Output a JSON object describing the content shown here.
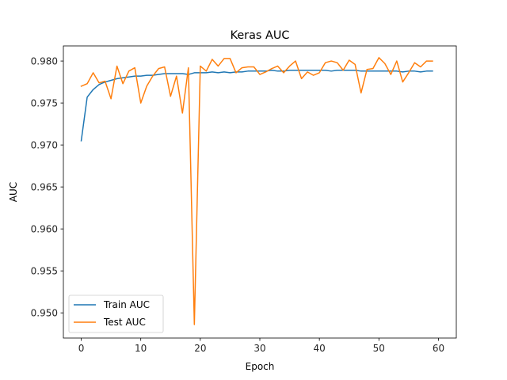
{
  "chart_data": {
    "type": "line",
    "title": "Keras AUC",
    "xlabel": "Epoch",
    "ylabel": "AUC",
    "xlim": [
      -3,
      63
    ],
    "ylim": [
      0.947,
      0.9818
    ],
    "xticks": [
      0,
      10,
      20,
      30,
      40,
      50,
      60
    ],
    "yticks": [
      0.95,
      0.955,
      0.96,
      0.965,
      0.97,
      0.975,
      0.98
    ],
    "ytick_labels": [
      "0.950",
      "0.955",
      "0.960",
      "0.965",
      "0.970",
      "0.975",
      "0.980"
    ],
    "grid": false,
    "legend_position": "lower-left",
    "x": [
      0,
      1,
      2,
      3,
      4,
      5,
      6,
      7,
      8,
      9,
      10,
      11,
      12,
      13,
      14,
      15,
      16,
      17,
      18,
      19,
      20,
      21,
      22,
      23,
      24,
      25,
      26,
      27,
      28,
      29,
      30,
      31,
      32,
      33,
      34,
      35,
      36,
      37,
      38,
      39,
      40,
      41,
      42,
      43,
      44,
      45,
      46,
      47,
      48,
      49,
      50,
      51,
      52,
      53,
      54,
      55,
      56,
      57,
      58,
      59
    ],
    "series": [
      {
        "name": "Train AUC",
        "color": "#1f77b4",
        "values": [
          0.9705,
          0.9757,
          0.9766,
          0.9772,
          0.9775,
          0.9777,
          0.9779,
          0.978,
          0.9781,
          0.9782,
          0.9782,
          0.9783,
          0.9783,
          0.9784,
          0.9785,
          0.9785,
          0.9785,
          0.9785,
          0.9784,
          0.9786,
          0.9786,
          0.9786,
          0.9787,
          0.9786,
          0.9787,
          0.9786,
          0.9787,
          0.9787,
          0.9788,
          0.9788,
          0.9788,
          0.9788,
          0.9789,
          0.9788,
          0.9788,
          0.9789,
          0.9789,
          0.9789,
          0.9789,
          0.9789,
          0.9789,
          0.9789,
          0.9788,
          0.9789,
          0.9789,
          0.9789,
          0.9789,
          0.9788,
          0.9788,
          0.9788,
          0.9788,
          0.9788,
          0.9788,
          0.9788,
          0.9787,
          0.9788,
          0.9788,
          0.9787,
          0.9788,
          0.9788
        ]
      },
      {
        "name": "Test AUC",
        "color": "#ff7f0e",
        "values": [
          0.977,
          0.9773,
          0.9786,
          0.9774,
          0.9776,
          0.9755,
          0.9794,
          0.9773,
          0.9788,
          0.9792,
          0.975,
          0.977,
          0.9782,
          0.9791,
          0.9793,
          0.9758,
          0.9782,
          0.9738,
          0.9792,
          0.9486,
          0.9794,
          0.9788,
          0.9802,
          0.9794,
          0.9803,
          0.9803,
          0.9786,
          0.9792,
          0.9793,
          0.9793,
          0.9784,
          0.9787,
          0.9791,
          0.9794,
          0.9786,
          0.9794,
          0.98,
          0.9779,
          0.9787,
          0.9783,
          0.9786,
          0.9798,
          0.98,
          0.9798,
          0.9789,
          0.9801,
          0.9796,
          0.9762,
          0.979,
          0.9791,
          0.9804,
          0.9797,
          0.9784,
          0.98,
          0.9775,
          0.9786,
          0.9798,
          0.9793,
          0.98,
          0.98
        ]
      }
    ]
  }
}
